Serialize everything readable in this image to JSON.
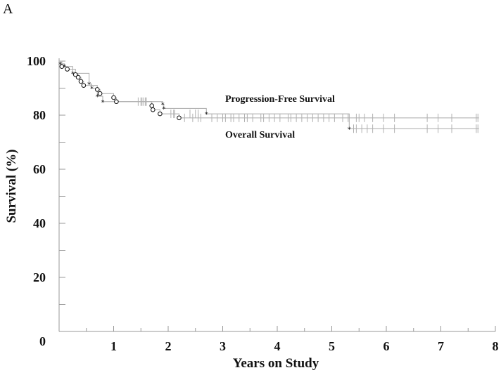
{
  "panel_label": "A",
  "chart_data": {
    "type": "line",
    "subtype": "kaplan-meier",
    "title": "",
    "xlabel": "Years on Study",
    "ylabel": "Survival (%)",
    "xlim": [
      0,
      8
    ],
    "ylim": [
      0,
      100
    ],
    "x_ticks": [
      "1",
      "2",
      "3",
      "4",
      "5",
      "6",
      "7",
      "8"
    ],
    "y_ticks": [
      "0",
      "20",
      "40",
      "60",
      "80",
      "100"
    ],
    "grid": false,
    "annotations": [
      "Progression-Free Survival",
      "Overall Survival"
    ],
    "series": [
      {
        "name": "Progression-Free Survival",
        "color": "#aaaaaa",
        "event_marker": "circle",
        "steps": [
          [
            0,
            100
          ],
          [
            0.05,
            98
          ],
          [
            0.15,
            97
          ],
          [
            0.3,
            95
          ],
          [
            0.35,
            94
          ],
          [
            0.4,
            92.5
          ],
          [
            0.45,
            91
          ],
          [
            0.7,
            89.5
          ],
          [
            0.75,
            88
          ],
          [
            1.0,
            86.5
          ],
          [
            1.05,
            85
          ],
          [
            1.7,
            83.5
          ],
          [
            1.72,
            82
          ],
          [
            1.85,
            80.5
          ],
          [
            2.2,
            79
          ],
          [
            7.7,
            79
          ]
        ],
        "events": [
          [
            0.05,
            98
          ],
          [
            0.15,
            97
          ],
          [
            0.3,
            95
          ],
          [
            0.35,
            94
          ],
          [
            0.4,
            92.5
          ],
          [
            0.45,
            91
          ],
          [
            0.7,
            89.5
          ],
          [
            0.75,
            88
          ],
          [
            1.0,
            86.5
          ],
          [
            1.05,
            85
          ],
          [
            1.7,
            83.5
          ],
          [
            1.72,
            82
          ],
          [
            1.85,
            80.5
          ],
          [
            2.2,
            79
          ]
        ],
        "censored": [
          [
            1.5,
            85
          ],
          [
            1.55,
            85
          ],
          [
            1.6,
            85
          ],
          [
            2.05,
            80.5
          ],
          [
            2.1,
            80.5
          ],
          [
            2.12,
            80.5
          ],
          [
            2.3,
            79
          ],
          [
            2.45,
            79
          ],
          [
            2.55,
            79
          ],
          [
            2.6,
            79
          ],
          [
            2.8,
            79
          ],
          [
            2.9,
            79
          ],
          [
            3.0,
            79
          ],
          [
            3.05,
            79
          ],
          [
            3.15,
            79
          ],
          [
            3.2,
            79
          ],
          [
            3.3,
            79
          ],
          [
            3.4,
            79
          ],
          [
            3.45,
            79
          ],
          [
            3.55,
            79
          ],
          [
            3.7,
            79
          ],
          [
            3.75,
            79
          ],
          [
            3.85,
            79
          ],
          [
            3.95,
            79
          ],
          [
            4.05,
            79
          ],
          [
            4.2,
            79
          ],
          [
            4.25,
            79
          ],
          [
            4.35,
            79
          ],
          [
            4.45,
            79
          ],
          [
            4.55,
            79
          ],
          [
            4.65,
            79
          ],
          [
            4.75,
            79
          ],
          [
            4.85,
            79
          ],
          [
            4.95,
            79
          ],
          [
            5.05,
            79
          ],
          [
            5.2,
            79
          ],
          [
            5.3,
            79
          ],
          [
            5.45,
            79
          ],
          [
            5.5,
            79
          ],
          [
            5.6,
            79
          ],
          [
            5.75,
            79
          ],
          [
            5.95,
            79
          ],
          [
            6.15,
            79
          ],
          [
            6.75,
            79
          ],
          [
            6.95,
            79
          ],
          [
            7.2,
            79
          ],
          [
            7.65,
            79
          ],
          [
            7.68,
            79
          ]
        ]
      },
      {
        "name": "Overall Survival",
        "color": "#aaaaaa",
        "event_marker": "star",
        "steps": [
          [
            0,
            100
          ],
          [
            0.02,
            99
          ],
          [
            0.1,
            98
          ],
          [
            0.25,
            95.5
          ],
          [
            0.55,
            91.5
          ],
          [
            0.6,
            90
          ],
          [
            0.7,
            87
          ],
          [
            0.8,
            85
          ],
          [
            1.9,
            84
          ],
          [
            1.92,
            82.5
          ],
          [
            2.7,
            80.5
          ],
          [
            5.3,
            80.5
          ],
          [
            5.32,
            75
          ],
          [
            7.7,
            75
          ]
        ],
        "events": [
          [
            0.02,
            99
          ],
          [
            0.1,
            98
          ],
          [
            0.25,
            95.5
          ],
          [
            0.55,
            91.5
          ],
          [
            0.6,
            90
          ],
          [
            0.7,
            87
          ],
          [
            0.8,
            85
          ],
          [
            1.9,
            84
          ],
          [
            1.92,
            82.5
          ],
          [
            2.7,
            80.5
          ],
          [
            5.32,
            75
          ]
        ],
        "censored": [
          [
            1.45,
            85
          ],
          [
            1.52,
            85
          ],
          [
            1.58,
            85
          ],
          [
            2.4,
            80.5
          ],
          [
            2.5,
            80.5
          ],
          [
            2.55,
            80.5
          ],
          [
            5.4,
            75
          ],
          [
            5.45,
            75
          ],
          [
            5.55,
            75
          ],
          [
            5.65,
            75
          ],
          [
            5.75,
            75
          ],
          [
            5.95,
            75
          ],
          [
            6.15,
            75
          ],
          [
            6.75,
            75
          ],
          [
            6.95,
            75
          ],
          [
            7.2,
            75
          ],
          [
            7.65,
            75
          ],
          [
            7.68,
            75
          ]
        ]
      }
    ]
  }
}
